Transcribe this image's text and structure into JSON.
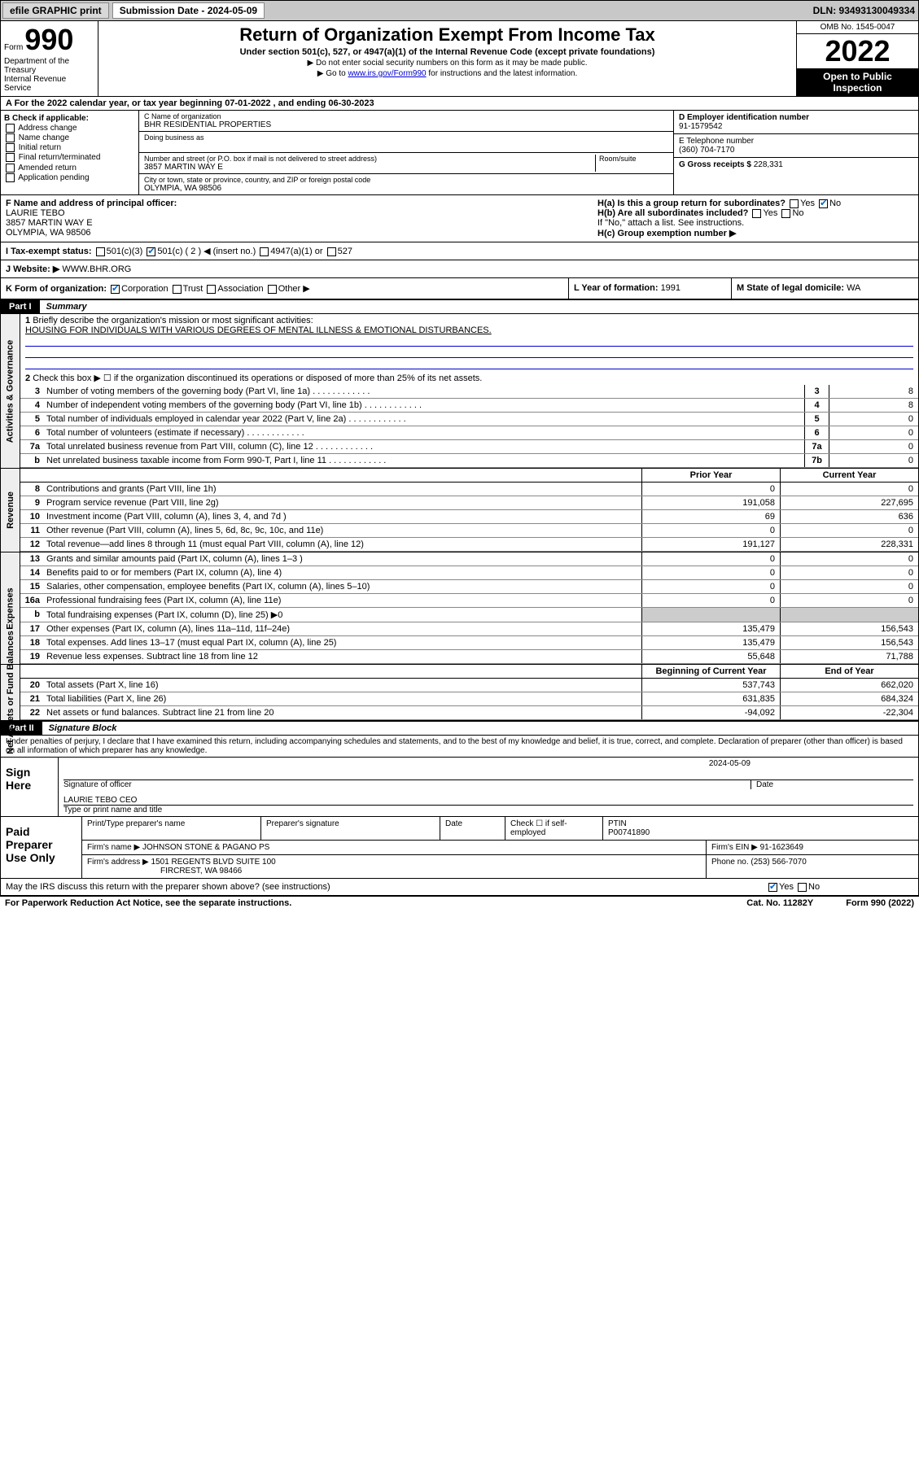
{
  "topbar": {
    "efile_btn": "efile GRAPHIC print",
    "subdate_label": "Submission Date - 2024-05-09",
    "dln": "DLN: 93493130049334"
  },
  "header": {
    "form_word": "Form",
    "form_num": "990",
    "dept": "Department of the Treasury\nInternal Revenue Service",
    "title": "Return of Organization Exempt From Income Tax",
    "sub1": "Under section 501(c), 527, or 4947(a)(1) of the Internal Revenue Code (except private foundations)",
    "sub2": "▶ Do not enter social security numbers on this form as it may be made public.",
    "sub3_pre": "▶ Go to ",
    "sub3_link": "www.irs.gov/Form990",
    "sub3_post": " for instructions and the latest information.",
    "omb": "OMB No. 1545-0047",
    "year": "2022",
    "inspect": "Open to Public Inspection"
  },
  "row_a": "A For the 2022 calendar year, or tax year beginning 07-01-2022   , and ending 06-30-2023",
  "col_b": {
    "head": "B Check if applicable:",
    "items": [
      "Address change",
      "Name change",
      "Initial return",
      "Final return/terminated",
      "Amended return",
      "Application pending"
    ]
  },
  "col_c": {
    "name_lbl": "C Name of organization",
    "name": "BHR RESIDENTIAL PROPERTIES",
    "dba_lbl": "Doing business as",
    "addr_lbl": "Number and street (or P.O. box if mail is not delivered to street address)",
    "room_lbl": "Room/suite",
    "addr": "3857 MARTIN WAY E",
    "city_lbl": "City or town, state or province, country, and ZIP or foreign postal code",
    "city": "OLYMPIA, WA  98506"
  },
  "col_right": {
    "d_lbl": "D Employer identification number",
    "d_val": "91-1579542",
    "e_lbl": "E Telephone number",
    "e_val": "(360) 704-7170",
    "g_lbl": "G Gross receipts $ ",
    "g_val": "228,331"
  },
  "row_f": {
    "f_lbl": "F Name and address of principal officer:",
    "f_name": "LAURIE TEBO",
    "f_addr1": "3857 MARTIN WAY E",
    "f_addr2": "OLYMPIA, WA  98506",
    "ha": "H(a)  Is this a group return for subordinates?",
    "ha_yes": "Yes",
    "ha_no": "No",
    "hb": "H(b)  Are all subordinates included?",
    "hb_yes": "Yes",
    "hb_no": "No",
    "hb_note": "If \"No,\" attach a list. See instructions.",
    "hc": "H(c)  Group exemption number ▶"
  },
  "row_i": {
    "lbl": "I   Tax-exempt status:",
    "o1": "501(c)(3)",
    "o2": "501(c) ( 2 ) ◀ (insert no.)",
    "o3": "4947(a)(1) or",
    "o4": "527"
  },
  "row_j": {
    "lbl": "J   Website: ▶",
    "val": "WWW.BHR.ORG"
  },
  "row_k": {
    "lbl": "K Form of organization:",
    "o1": "Corporation",
    "o2": "Trust",
    "o3": "Association",
    "o4": "Other ▶",
    "l_lbl": "L Year of formation: ",
    "l_val": "1991",
    "m_lbl": "M State of legal domicile: ",
    "m_val": "WA"
  },
  "parts": {
    "p1": "Part I",
    "p1t": "Summary",
    "p2": "Part II",
    "p2t": "Signature Block"
  },
  "summary": {
    "tab1": "Activities & Governance",
    "tab2": "Revenue",
    "tab3": "Expenses",
    "tab4": "Net Assets or Fund Balances",
    "l1": "Briefly describe the organization's mission or most significant activities:",
    "l1v": "HOUSING FOR INDIVIDUALS WITH VARIOUS DEGREES OF MENTAL ILLNESS & EMOTIONAL DISTURBANCES.",
    "l2": "Check this box ▶ ☐  if the organization discontinued its operations or disposed of more than 25% of its net assets.",
    "lines_g": [
      {
        "n": "3",
        "t": "Number of voting members of the governing body (Part VI, line 1a)",
        "b": "3",
        "v": "8"
      },
      {
        "n": "4",
        "t": "Number of independent voting members of the governing body (Part VI, line 1b)",
        "b": "4",
        "v": "8"
      },
      {
        "n": "5",
        "t": "Total number of individuals employed in calendar year 2022 (Part V, line 2a)",
        "b": "5",
        "v": "0"
      },
      {
        "n": "6",
        "t": "Total number of volunteers (estimate if necessary)",
        "b": "6",
        "v": "0"
      },
      {
        "n": "7a",
        "t": "Total unrelated business revenue from Part VIII, column (C), line 12",
        "b": "7a",
        "v": "0"
      },
      {
        "n": "b",
        "t": "Net unrelated business taxable income from Form 990-T, Part I, line 11",
        "b": "7b",
        "v": "0"
      }
    ],
    "col_prior": "Prior Year",
    "col_curr": "Current Year",
    "col_beg": "Beginning of Current Year",
    "col_end": "End of Year",
    "rev": [
      {
        "n": "8",
        "t": "Contributions and grants (Part VIII, line 1h)",
        "p": "0",
        "c": "0"
      },
      {
        "n": "9",
        "t": "Program service revenue (Part VIII, line 2g)",
        "p": "191,058",
        "c": "227,695"
      },
      {
        "n": "10",
        "t": "Investment income (Part VIII, column (A), lines 3, 4, and 7d )",
        "p": "69",
        "c": "636"
      },
      {
        "n": "11",
        "t": "Other revenue (Part VIII, column (A), lines 5, 6d, 8c, 9c, 10c, and 11e)",
        "p": "0",
        "c": "0"
      },
      {
        "n": "12",
        "t": "Total revenue—add lines 8 through 11 (must equal Part VIII, column (A), line 12)",
        "p": "191,127",
        "c": "228,331"
      }
    ],
    "exp": [
      {
        "n": "13",
        "t": "Grants and similar amounts paid (Part IX, column (A), lines 1–3 )",
        "p": "0",
        "c": "0"
      },
      {
        "n": "14",
        "t": "Benefits paid to or for members (Part IX, column (A), line 4)",
        "p": "0",
        "c": "0"
      },
      {
        "n": "15",
        "t": "Salaries, other compensation, employee benefits (Part IX, column (A), lines 5–10)",
        "p": "0",
        "c": "0"
      },
      {
        "n": "16a",
        "t": "Professional fundraising fees (Part IX, column (A), line 11e)",
        "p": "0",
        "c": "0"
      },
      {
        "n": "b",
        "t": "Total fundraising expenses (Part IX, column (D), line 25) ▶0",
        "p": "",
        "c": "",
        "grey": true
      },
      {
        "n": "17",
        "t": "Other expenses (Part IX, column (A), lines 11a–11d, 11f–24e)",
        "p": "135,479",
        "c": "156,543"
      },
      {
        "n": "18",
        "t": "Total expenses. Add lines 13–17 (must equal Part IX, column (A), line 25)",
        "p": "135,479",
        "c": "156,543"
      },
      {
        "n": "19",
        "t": "Revenue less expenses. Subtract line 18 from line 12",
        "p": "55,648",
        "c": "71,788"
      }
    ],
    "net": [
      {
        "n": "20",
        "t": "Total assets (Part X, line 16)",
        "p": "537,743",
        "c": "662,020"
      },
      {
        "n": "21",
        "t": "Total liabilities (Part X, line 26)",
        "p": "631,835",
        "c": "684,324"
      },
      {
        "n": "22",
        "t": "Net assets or fund balances. Subtract line 21 from line 20",
        "p": "-94,092",
        "c": "-22,304"
      }
    ]
  },
  "sig": {
    "decl": "Under penalties of perjury, I declare that I have examined this return, including accompanying schedules and statements, and to the best of my knowledge and belief, it is true, correct, and complete. Declaration of preparer (other than officer) is based on all information of which preparer has any knowledge.",
    "sign_here": "Sign Here",
    "sig_officer": "Signature of officer",
    "date_lbl": "Date",
    "date_val": "2024-05-09",
    "name_title": "LAURIE TEBO  CEO",
    "name_lbl": "Type or print name and title",
    "paid": "Paid Preparer Use Only",
    "pt_lbl": "Print/Type preparer's name",
    "ps_lbl": "Preparer's signature",
    "chk_lbl": "Check ☐ if self-employed",
    "ptin_lbl": "PTIN",
    "ptin": "P00741890",
    "firm_lbl": "Firm's name   ▶",
    "firm": "JOHNSON STONE & PAGANO PS",
    "ein_lbl": "Firm's EIN ▶",
    "ein": "91-1623649",
    "faddr_lbl": "Firm's address ▶",
    "faddr1": "1501 REGENTS BLVD SUITE 100",
    "faddr2": "FIRCREST, WA  98466",
    "phone_lbl": "Phone no. ",
    "phone": "(253) 566-7070",
    "may": "May the IRS discuss this return with the preparer shown above? (see instructions)",
    "may_yes": "Yes",
    "may_no": "No"
  },
  "footer": {
    "pra": "For Paperwork Reduction Act Notice, see the separate instructions.",
    "cat": "Cat. No. 11282Y",
    "form": "Form 990 (2022)"
  }
}
